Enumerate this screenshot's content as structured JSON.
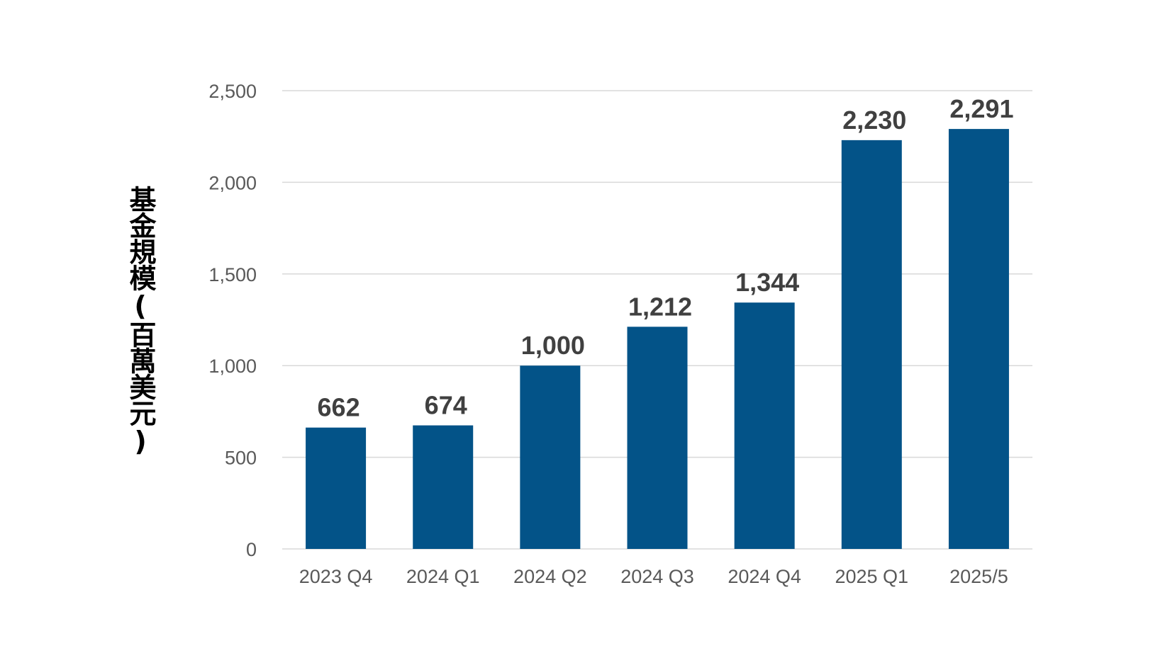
{
  "chart_data": {
    "type": "bar",
    "categories": [
      "2023 Q4",
      "2024 Q1",
      "2024 Q2",
      "2024 Q3",
      "2024 Q4",
      "2025 Q1",
      "2025/5"
    ],
    "values": [
      662,
      674,
      1000,
      1212,
      1344,
      2230,
      2291
    ],
    "data_labels": [
      "662",
      "674",
      "1,000",
      "1,212",
      "1,344",
      "2,230",
      "2,291"
    ],
    "yticks": [
      0,
      500,
      1000,
      1500,
      2000,
      2500
    ],
    "ytick_labels": [
      "0",
      "500",
      "1,000",
      "1,500",
      "2,000",
      "2,500"
    ],
    "ylim": [
      0,
      2500
    ],
    "title": "",
    "xlabel": "",
    "ylabel": "基金規模(百萬美元)",
    "grid": true,
    "legend": "none",
    "colors": {
      "bar": "#035388",
      "grid": "#d9d9d9",
      "tick_text": "#595959",
      "data_label": "#404040"
    }
  }
}
